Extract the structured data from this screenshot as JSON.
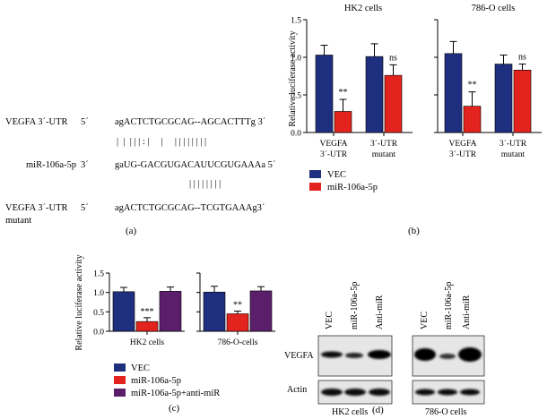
{
  "colors": {
    "vec": "#1f2f7f",
    "mir": "#e3231d",
    "anti": "#5b1e6b"
  },
  "panel_labels": {
    "a": "(a)",
    "b": "(b)",
    "c": "(c)",
    "d": "(d)"
  },
  "seq": {
    "row1": {
      "label": "VEGFA 3´-UTR",
      "end": "5´",
      "seq": "agACTCTGCGCAG--AGCACTTTg 3´"
    },
    "bars1": "|  |  | | | : |     |     | | | | | | | |",
    "row2": {
      "label": "miR-106a-5p",
      "end": "3´",
      "seq": "gaUG-GACGUGACAUUCGUGAAAa 5´"
    },
    "bars2": "| | | | | | | |",
    "row3": {
      "label": "VEGFA 3´-UTR",
      "label2": "mutant",
      "end": "5´",
      "seq": "agACTCTGCGCAG--TCGTGAAAg3´"
    }
  },
  "legend_b": [
    "VEC",
    "miR-106a-5p"
  ],
  "legend_c": [
    "VEC",
    "miR-106a-5p",
    "miR-106a-5p+anti-miR"
  ],
  "western": {
    "lanes": [
      "VEC",
      "miR-106a-5p",
      "Anti-miR"
    ],
    "rows": [
      "VEGFA",
      "Actin"
    ],
    "panels": [
      "HK2 cells",
      "786-O cells"
    ]
  },
  "chart_data": [
    {
      "type": "bar",
      "panel": "b",
      "ylabel": "Relative luciferase activity",
      "ylim": [
        0,
        1.5
      ],
      "yticks": [
        "0.0",
        "0.5",
        "1.0",
        "1.5"
      ],
      "groups": [
        {
          "title": "HK2 cells",
          "categories": [
            [
              "VEGFA",
              "3´-UTR"
            ],
            [
              "3´-UTR",
              "mutant"
            ]
          ],
          "series": [
            {
              "name": "VEC",
              "values": [
                1.03,
                1.01
              ],
              "err": [
                0.13,
                0.17
              ]
            },
            {
              "name": "miR-106a-5p",
              "values": [
                0.28,
                0.76
              ],
              "err": [
                0.16,
                0.14
              ]
            }
          ],
          "annotations": [
            "**",
            "ns"
          ]
        },
        {
          "title": "786-O cells",
          "categories": [
            [
              "VEGFA",
              "3´-UTR"
            ],
            [
              "3´-UTR",
              "mutant"
            ]
          ],
          "series": [
            {
              "name": "VEC",
              "values": [
                1.05,
                0.91
              ],
              "err": [
                0.16,
                0.12
              ]
            },
            {
              "name": "miR-106a-5p",
              "values": [
                0.35,
                0.83
              ],
              "err": [
                0.19,
                0.08
              ]
            }
          ],
          "annotations": [
            "**",
            "ns"
          ]
        }
      ]
    },
    {
      "type": "bar",
      "panel": "c",
      "ylabel": "Relative luciferase activity",
      "ylim": [
        0,
        1.5
      ],
      "yticks": [
        "0.0",
        "0.5",
        "1.0",
        "1.5"
      ],
      "groups": [
        {
          "title": "HK2 cells",
          "series": [
            {
              "name": "VEC",
              "value": 1.02,
              "err": 0.11
            },
            {
              "name": "miR-106a-5p",
              "value": 0.25,
              "err": 0.1
            },
            {
              "name": "miR-106a-5p+anti-miR",
              "value": 1.03,
              "err": 0.11
            }
          ],
          "annotation": "***"
        },
        {
          "title": "786-O-cells",
          "series": [
            {
              "name": "VEC",
              "value": 1.01,
              "err": 0.15
            },
            {
              "name": "miR-106a-5p",
              "value": 0.45,
              "err": 0.07
            },
            {
              "name": "miR-106a-5p+anti-miR",
              "value": 1.04,
              "err": 0.11
            }
          ],
          "annotation": "**"
        }
      ]
    }
  ]
}
